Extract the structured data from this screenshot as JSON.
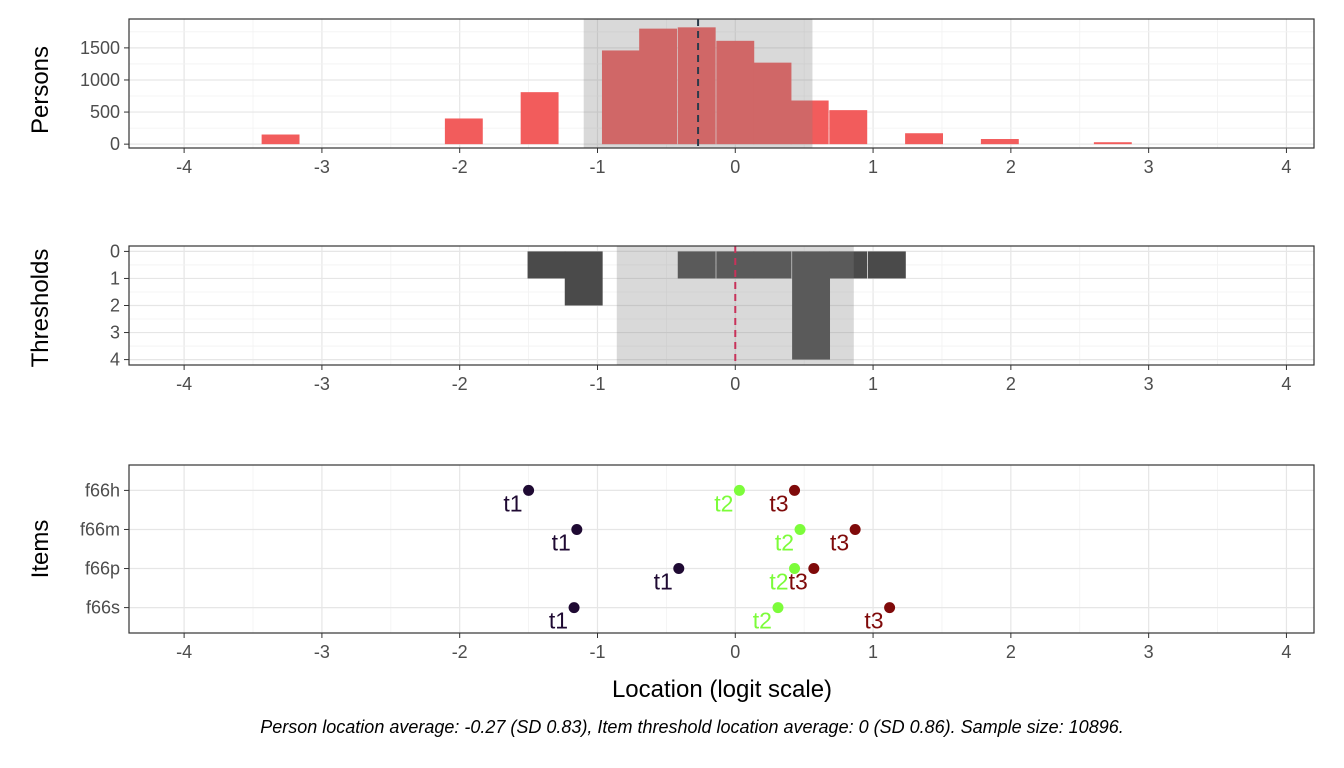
{
  "chart_data": [
    {
      "type": "bar",
      "panel": "persons",
      "ylabel": "Persons",
      "xlim": [
        -4.4,
        4.2
      ],
      "ylim": [
        -60,
        1950
      ],
      "xticks": [
        "-4",
        "-3",
        "-2",
        "-1",
        "0",
        "1",
        "2",
        "3",
        "4"
      ],
      "yticks": [
        "0",
        "500",
        "1000",
        "1500"
      ],
      "grid": true,
      "bin_width": 0.275,
      "bins": [
        {
          "x": -3.3,
          "count": 150
        },
        {
          "x": -1.97,
          "count": 400
        },
        {
          "x": -1.42,
          "count": 810
        },
        {
          "x": -0.83,
          "count": 1460
        },
        {
          "x": -0.56,
          "count": 1800
        },
        {
          "x": -0.28,
          "count": 1820
        },
        {
          "x": 0.0,
          "count": 1610
        },
        {
          "x": 0.27,
          "count": 1270
        },
        {
          "x": 0.54,
          "count": 680
        },
        {
          "x": 0.82,
          "count": 530
        },
        {
          "x": 1.37,
          "count": 170
        },
        {
          "x": 1.92,
          "count": 80
        },
        {
          "x": 2.74,
          "count": 30
        }
      ],
      "mean": -0.27,
      "sd": 0.83,
      "bar_color": "#F25C5C",
      "mean_line_color": "#2B3A4A",
      "band_color": "#808080"
    },
    {
      "type": "bar",
      "panel": "thresholds",
      "ylabel": "Thresholds",
      "xlim": [
        -4.4,
        4.2
      ],
      "ylim": [
        -0.2,
        4.2
      ],
      "xticks": [
        "-4",
        "-3",
        "-2",
        "-1",
        "0",
        "1",
        "2",
        "3",
        "4"
      ],
      "yticks": [
        "0",
        "1",
        "2",
        "3",
        "4"
      ],
      "y_reversed": true,
      "grid": true,
      "bin_width": 0.275,
      "bins": [
        {
          "x": -1.37,
          "count": 1
        },
        {
          "x": -1.1,
          "count": 2
        },
        {
          "x": -0.28,
          "count": 1
        },
        {
          "x": 0.0,
          "count": 1
        },
        {
          "x": 0.27,
          "count": 1
        },
        {
          "x": 0.55,
          "count": 4
        },
        {
          "x": 0.82,
          "count": 1
        },
        {
          "x": 1.1,
          "count": 1
        }
      ],
      "mean": 0,
      "sd": 0.86,
      "bar_color": "#4A4A4A",
      "mean_line_color": "#C8325A",
      "band_color": "#808080"
    },
    {
      "type": "scatter",
      "panel": "items",
      "ylabel": "Items",
      "xlabel": "Location (logit scale)",
      "xlim": [
        -4.4,
        4.2
      ],
      "xticks": [
        "-4",
        "-3",
        "-2",
        "-1",
        "0",
        "1",
        "2",
        "3",
        "4"
      ],
      "categories": [
        "f66h",
        "f66m",
        "f66p",
        "f66s"
      ],
      "grid": true,
      "series": [
        {
          "name": "t1",
          "color": "#1F0A33",
          "values": [
            -1.5,
            -1.15,
            -0.41,
            -1.17
          ]
        },
        {
          "name": "t2",
          "color": "#7CFC3A",
          "values": [
            0.03,
            0.47,
            0.43,
            0.31
          ]
        },
        {
          "name": "t3",
          "color": "#7F0A0A",
          "values": [
            0.43,
            0.87,
            0.57,
            1.12
          ]
        }
      ]
    }
  ],
  "caption": "Person location average: -0.27 (SD 0.83), Item threshold location average: 0 (SD 0.86). Sample size: 10896.",
  "colors": {
    "panel_border": "#333333",
    "grid_major": "#E6E6E6",
    "grid_minor": "#F2F2F2",
    "tick_text": "#4D4D4D",
    "axis_title": "#000000"
  }
}
